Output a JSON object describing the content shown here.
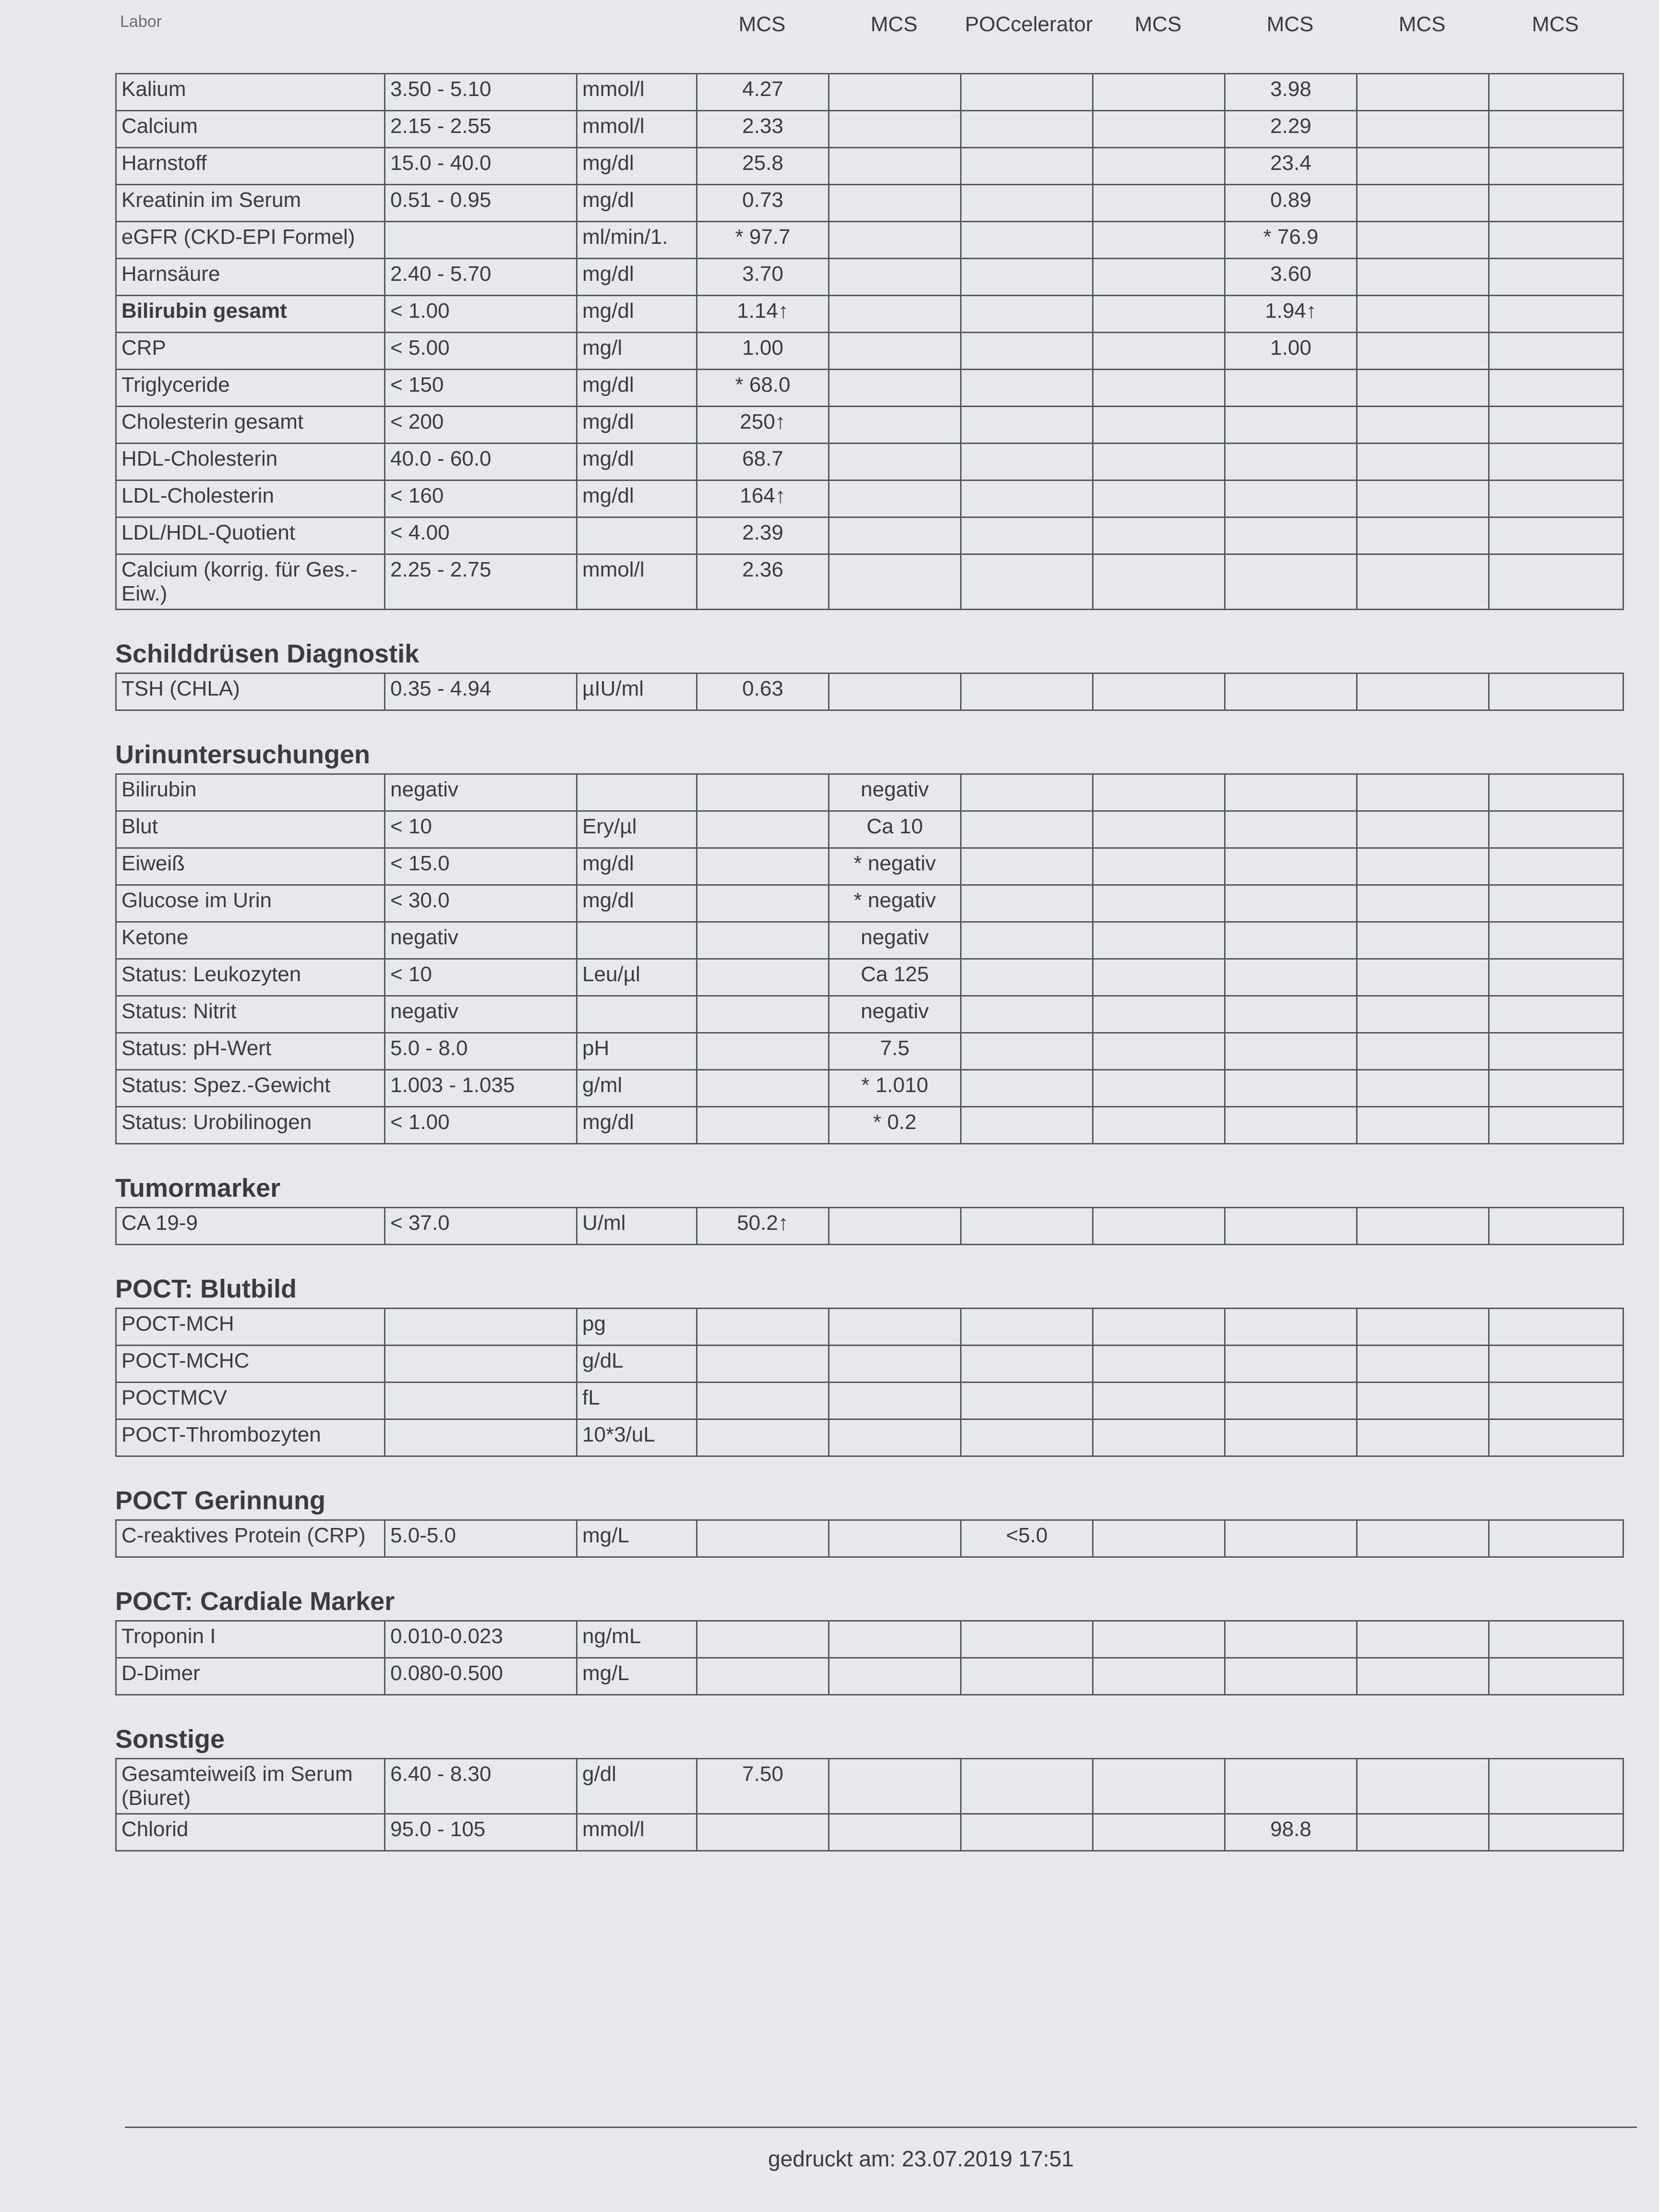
{
  "header": {
    "corner": "Labor",
    "columns": [
      "MCS",
      "MCS",
      "POCcelerator",
      "MCS",
      "MCS",
      "MCS",
      "MCS"
    ]
  },
  "sections": [
    {
      "rows": [
        {
          "name": "Kalium",
          "ref": "3.50 - 5.10",
          "unit": "mmol/l",
          "values": [
            "4.27",
            null,
            null,
            null,
            "3.98",
            null,
            null
          ]
        },
        {
          "name": "Calcium",
          "ref": "2.15 - 2.55",
          "unit": "mmol/l",
          "values": [
            "2.33",
            null,
            null,
            null,
            "2.29",
            null,
            null
          ]
        },
        {
          "name": "Harnstoff",
          "ref": "15.0 - 40.0",
          "unit": "mg/dl",
          "values": [
            "25.8",
            null,
            null,
            null,
            "23.4",
            null,
            null
          ]
        },
        {
          "name": "Kreatinin im Serum",
          "ref": "0.51 - 0.95",
          "unit": "mg/dl",
          "values": [
            "0.73",
            null,
            null,
            null,
            "0.89",
            null,
            null
          ]
        },
        {
          "name": "eGFR (CKD-EPI Formel)",
          "ref": null,
          "unit": "ml/min/1.",
          "values": [
            "* 97.7",
            null,
            null,
            null,
            "* 76.9",
            null,
            null
          ]
        },
        {
          "name": "Harnsäure",
          "ref": "2.40 - 5.70",
          "unit": "mg/dl",
          "values": [
            "3.70",
            null,
            null,
            null,
            "3.60",
            null,
            null
          ]
        },
        {
          "name": "Bilirubin gesamt",
          "bold": true,
          "ref": "< 1.00",
          "unit": "mg/dl",
          "values": [
            "1.14↑",
            null,
            null,
            null,
            "1.94↑",
            null,
            null
          ]
        },
        {
          "name": "CRP",
          "ref": "< 5.00",
          "unit": "mg/l",
          "values": [
            "1.00",
            null,
            null,
            null,
            "1.00",
            null,
            null
          ]
        },
        {
          "name": "Triglyceride",
          "ref": "< 150",
          "unit": "mg/dl",
          "values": [
            "* 68.0",
            null,
            null,
            null,
            null,
            null,
            null
          ]
        },
        {
          "name": "Cholesterin gesamt",
          "ref": "< 200",
          "unit": "mg/dl",
          "values": [
            "250↑",
            null,
            null,
            null,
            null,
            null,
            null
          ]
        },
        {
          "name": "HDL-Cholesterin",
          "ref": "40.0 - 60.0",
          "unit": "mg/dl",
          "values": [
            "68.7",
            null,
            null,
            null,
            null,
            null,
            null
          ]
        },
        {
          "name": "LDL-Cholesterin",
          "ref": "< 160",
          "unit": "mg/dl",
          "values": [
            "164↑",
            null,
            null,
            null,
            null,
            null,
            null
          ]
        },
        {
          "name": "LDL/HDL-Quotient",
          "ref": "< 4.00",
          "unit": null,
          "values": [
            "2.39",
            null,
            null,
            null,
            null,
            null,
            null
          ]
        },
        {
          "name": "Calcium (korrig. für Ges.-Eiw.)",
          "ref": "2.25 - 2.75",
          "unit": "mmol/l",
          "values": [
            "2.36",
            null,
            null,
            null,
            null,
            null,
            null
          ]
        }
      ]
    },
    {
      "title": "Schilddrüsen Diagnostik",
      "rows": [
        {
          "name": "TSH (CHLA)",
          "ref": "0.35 - 4.94",
          "unit": "µIU/ml",
          "values": [
            "0.63",
            null,
            null,
            null,
            null,
            null,
            null
          ]
        }
      ]
    },
    {
      "title": "Urinuntersuchungen",
      "rows": [
        {
          "name": "Bilirubin",
          "ref": "negativ",
          "unit": null,
          "values": [
            null,
            "negativ",
            null,
            null,
            null,
            null,
            null
          ]
        },
        {
          "name": "Blut",
          "ref": "< 10",
          "unit": "Ery/µl",
          "values": [
            null,
            "Ca 10",
            null,
            null,
            null,
            null,
            null
          ]
        },
        {
          "name": "Eiweiß",
          "ref": "< 15.0",
          "unit": "mg/dl",
          "values": [
            null,
            "* negativ",
            null,
            null,
            null,
            null,
            null
          ]
        },
        {
          "name": "Glucose im Urin",
          "ref": "< 30.0",
          "unit": "mg/dl",
          "values": [
            null,
            "* negativ",
            null,
            null,
            null,
            null,
            null
          ]
        },
        {
          "name": "Ketone",
          "ref": "negativ",
          "unit": null,
          "values": [
            null,
            "negativ",
            null,
            null,
            null,
            null,
            null
          ]
        },
        {
          "name": "Status: Leukozyten",
          "ref": "< 10",
          "unit": "Leu/µl",
          "values": [
            null,
            "Ca 125",
            null,
            null,
            null,
            null,
            null
          ]
        },
        {
          "name": "Status: Nitrit",
          "ref": "negativ",
          "unit": null,
          "values": [
            null,
            "negativ",
            null,
            null,
            null,
            null,
            null
          ]
        },
        {
          "name": "Status: pH-Wert",
          "ref": "5.0 - 8.0",
          "unit": "pH",
          "values": [
            null,
            "7.5",
            null,
            null,
            null,
            null,
            null
          ]
        },
        {
          "name": "Status: Spez.-Gewicht",
          "ref": "1.003 - 1.035",
          "unit": "g/ml",
          "values": [
            null,
            "* 1.010",
            null,
            null,
            null,
            null,
            null
          ]
        },
        {
          "name": "Status: Urobilinogen",
          "ref": "< 1.00",
          "unit": "mg/dl",
          "values": [
            null,
            "* 0.2",
            null,
            null,
            null,
            null,
            null
          ]
        }
      ]
    },
    {
      "title": "Tumormarker",
      "rows": [
        {
          "name": "CA 19-9",
          "ref": "< 37.0",
          "unit": "U/ml",
          "values": [
            "50.2↑",
            null,
            null,
            null,
            null,
            null,
            null
          ]
        }
      ]
    },
    {
      "title": "POCT: Blutbild",
      "rows": [
        {
          "name": "POCT-MCH",
          "ref": null,
          "unit": "pg",
          "values": [
            null,
            null,
            null,
            null,
            null,
            null,
            null
          ]
        },
        {
          "name": "POCT-MCHC",
          "ref": null,
          "unit": "g/dL",
          "values": [
            null,
            null,
            null,
            null,
            null,
            null,
            null
          ]
        },
        {
          "name": "POCTMCV",
          "ref": null,
          "unit": "fL",
          "values": [
            null,
            null,
            null,
            null,
            null,
            null,
            null
          ]
        },
        {
          "name": "POCT-Thrombozyten",
          "ref": null,
          "unit": "10*3/uL",
          "values": [
            null,
            null,
            null,
            null,
            null,
            null,
            null
          ]
        }
      ]
    },
    {
      "title": "POCT Gerinnung",
      "rows": [
        {
          "name": "C-reaktives Protein (CRP)",
          "ref": "5.0-5.0",
          "unit": "mg/L",
          "values": [
            null,
            null,
            "<5.0",
            null,
            null,
            null,
            null
          ]
        }
      ]
    },
    {
      "title": "POCT: Cardiale Marker",
      "rows": [
        {
          "name": "Troponin I",
          "ref": "0.010-0.023",
          "unit": "ng/mL",
          "values": [
            null,
            null,
            null,
            null,
            null,
            null,
            null
          ]
        },
        {
          "name": "D-Dimer",
          "ref": "0.080-0.500",
          "unit": "mg/L",
          "values": [
            null,
            null,
            null,
            null,
            null,
            null,
            null
          ]
        }
      ]
    },
    {
      "title": "Sonstige",
      "rows": [
        {
          "name": "Gesamteiweiß im Serum (Biuret)",
          "ref": "6.40 - 8.30",
          "unit": "g/dl",
          "values": [
            "7.50",
            null,
            null,
            null,
            null,
            null,
            null
          ]
        },
        {
          "name": "Chlorid",
          "ref": "95.0 - 105",
          "unit": "mmol/l",
          "values": [
            null,
            null,
            null,
            null,
            "98.8",
            null,
            null
          ]
        }
      ]
    }
  ],
  "footer": "gedruckt am: 23.07.2019  17:51"
}
